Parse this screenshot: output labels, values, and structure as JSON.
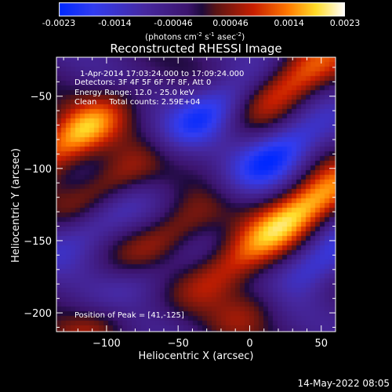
{
  "colorbar": {
    "ticks": [
      "-0.0023",
      "-0.0014",
      "-0.00046",
      "0.00046",
      "0.0014",
      "0.0023"
    ],
    "range": [
      -0.0023,
      0.0023
    ],
    "unit_main": "(photons cm",
    "unit_exp1": "-2",
    "unit_s": " s",
    "unit_exp2": "-1",
    "unit_asec": " asec",
    "unit_exp3": "-2",
    "unit_close": ")"
  },
  "header": {
    "title": "Reconstructed RHESSI Image"
  },
  "info": {
    "time": "1-Apr-2014 17:03:24.000 to 17:09:24.000",
    "detectors": "Detectors: 3F 4F 5F 6F 7F 8F, Att 0",
    "energy": "Energy Range: 12.0 - 25.0 keV",
    "clean": "Clean     Total counts: 2.59E+04"
  },
  "peak": "Position of Peak = [41,-125]",
  "footer": {
    "date": "14-May-2022 08:05"
  },
  "chart_data": {
    "type": "heatmap",
    "title": "Reconstructed RHESSI Image",
    "xlabel": "Heliocentric X (arcsec)",
    "ylabel": "Heliocentric Y (arcsec)",
    "xlim": [
      -135,
      60
    ],
    "ylim": [
      -213,
      -23
    ],
    "xticks": [
      -100,
      -50,
      0,
      50
    ],
    "yticks": [
      -50,
      -100,
      -150,
      -200
    ],
    "xticklabels": [
      "−100",
      "−50",
      "0",
      "50"
    ],
    "yticklabels": [
      "−50",
      "−100",
      "−150",
      "−200"
    ],
    "colorscale_range": [
      -0.0023,
      0.0023
    ],
    "peak_position": [
      41,
      -125
    ],
    "sources": [
      {
        "x": 33,
        "y": -38,
        "amplitude": 0.0018
      },
      {
        "x": -122,
        "y": -78,
        "amplitude": 0.0021
      },
      {
        "x": 41,
        "y": -125,
        "amplitude": 0.0023
      },
      {
        "x": -95,
        "y": -110,
        "amplitude": 0.0013
      },
      {
        "x": -55,
        "y": -145,
        "amplitude": 0.0012
      },
      {
        "x": -10,
        "y": -165,
        "amplitude": 0.0014
      },
      {
        "x": 12,
        "y": -190,
        "amplitude": 0.0013
      },
      {
        "x": -105,
        "y": -205,
        "amplitude": 0.0012
      },
      {
        "x": -30,
        "y": -62,
        "amplitude": -0.0016
      },
      {
        "x": 20,
        "y": -90,
        "amplitude": -0.0018
      },
      {
        "x": 40,
        "y": -170,
        "amplitude": -0.0019
      },
      {
        "x": -85,
        "y": -185,
        "amplitude": -0.0012
      },
      {
        "x": -110,
        "y": -140,
        "amplitude": -0.0011
      }
    ]
  }
}
